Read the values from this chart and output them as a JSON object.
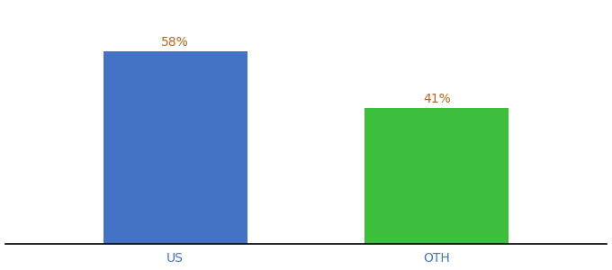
{
  "categories": [
    "US",
    "OTH"
  ],
  "values": [
    58,
    41
  ],
  "bar_colors": [
    "#4472C4",
    "#3DBF3D"
  ],
  "label_color": "#b5651d",
  "label_format": [
    "58%",
    "41%"
  ],
  "ylim": [
    0,
    72
  ],
  "background_color": "#ffffff",
  "bar_width": 0.55,
  "label_fontsize": 10,
  "tick_fontsize": 10,
  "tick_color": "#4472C4"
}
